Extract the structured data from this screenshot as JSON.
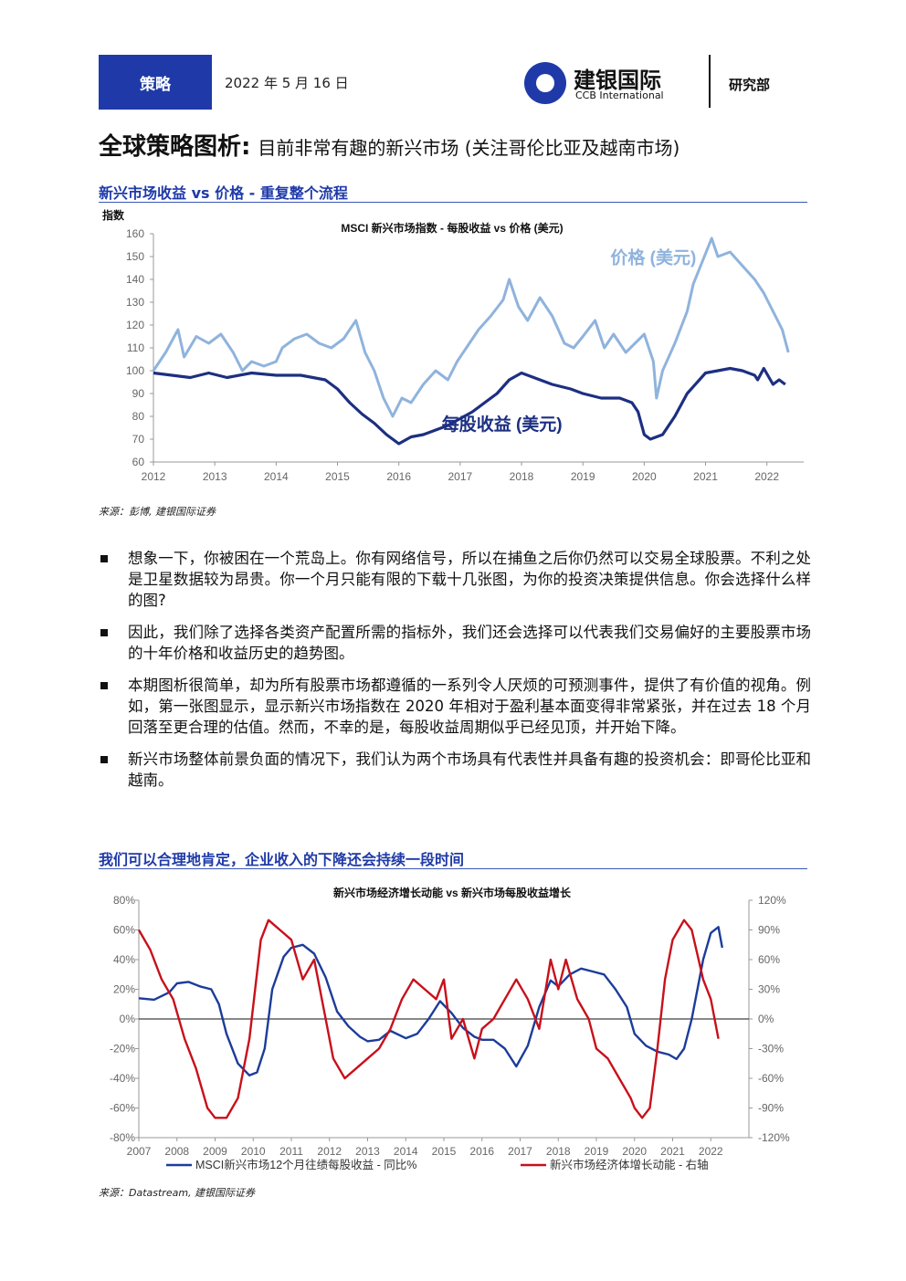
{
  "header": {
    "badge": "策略",
    "date": "2022 年 5 月 16 日",
    "logo_cn": "建银国际",
    "logo_en": "CCB International",
    "dept": "研究部"
  },
  "title": {
    "bold": "全球策略图析:",
    "rest": "目前非常有趣的新兴市场 (关注哥伦比亚及越南市场)"
  },
  "section1": {
    "heading": "新兴市场收益 vs 价格 - 重复整个流程"
  },
  "section2": {
    "heading": "我们可以合理地肯定，企业收入的下降还会持续一段时间"
  },
  "bullets": [
    "想象一下，你被困在一个荒岛上。你有网络信号，所以在捕鱼之后你仍然可以交易全球股票。不利之处是卫星数据较为昂贵。你一个月只能有限的下载十几张图，为你的投资决策提供信息。你会选择什么样的图?",
    "因此，我们除了选择各类资产配置所需的指标外，我们还会选择可以代表我们交易偏好的主要股票市场的十年价格和收益历史的趋势图。",
    "本期图析很简单，却为所有股票市场都遵循的一系列令人厌烦的可预测事件，提供了有价值的视角。例如，第一张图显示，显示新兴市场指数在 2020 年相对于盈利基本面变得非常紧张，并在过去 18 个月回落至更合理的估值。然而，不幸的是，每股收益周期似乎已经见顶，并开始下降。",
    "新兴市场整体前景负面的情况下，我们认为两个市场具有代表性并具备有趣的投资机会：即哥伦比亚和越南。"
  ],
  "sources": {
    "s1": "来源：彭博, 建银国际证券",
    "s2": "来源：Datastream, 建银国际证券"
  },
  "colors": {
    "brand": "#1f3aa8",
    "price": "#8fb3dd",
    "eps": "#1c2f82",
    "growth": "#c8101b",
    "epsgrowth": "#1c3c9a"
  },
  "chart_data": [
    {
      "type": "line",
      "title": "MSCI 新兴市场指数 - 每股收益 vs 价格 (美元)",
      "ylabel": "指数",
      "ylim": [
        60,
        160
      ],
      "yticks": [
        60,
        70,
        80,
        90,
        100,
        110,
        120,
        130,
        140,
        150,
        160
      ],
      "xlim": [
        2012,
        2022.6
      ],
      "xticks": [
        2012,
        2013,
        2014,
        2015,
        2016,
        2017,
        2018,
        2019,
        2020,
        2021,
        2022
      ],
      "series": [
        {
          "name": "价格 (美元)",
          "color": "#8fb3dd",
          "x": [
            2012.0,
            2012.2,
            2012.4,
            2012.5,
            2012.7,
            2012.9,
            2013.1,
            2013.3,
            2013.45,
            2013.6,
            2013.8,
            2014.0,
            2014.1,
            2014.3,
            2014.5,
            2014.7,
            2014.9,
            2015.1,
            2015.3,
            2015.45,
            2015.6,
            2015.75,
            2015.9,
            2016.05,
            2016.2,
            2016.4,
            2016.6,
            2016.8,
            2016.95,
            2017.1,
            2017.3,
            2017.5,
            2017.7,
            2017.8,
            2017.95,
            2018.1,
            2018.3,
            2018.5,
            2018.7,
            2018.85,
            2019.0,
            2019.2,
            2019.35,
            2019.5,
            2019.7,
            2019.85,
            2020.0,
            2020.15,
            2020.2,
            2020.3,
            2020.5,
            2020.7,
            2020.8,
            2020.95,
            2021.1,
            2021.2,
            2021.4,
            2021.6,
            2021.8,
            2021.95,
            2022.1,
            2022.25,
            2022.35
          ],
          "y": [
            100,
            108,
            118,
            106,
            115,
            112,
            116,
            108,
            100,
            104,
            102,
            104,
            110,
            114,
            116,
            112,
            110,
            114,
            122,
            108,
            100,
            88,
            80,
            88,
            86,
            94,
            100,
            96,
            104,
            110,
            118,
            124,
            131,
            140,
            128,
            122,
            132,
            124,
            112,
            110,
            115,
            122,
            110,
            116,
            108,
            112,
            116,
            104,
            88,
            100,
            112,
            126,
            138,
            148,
            158,
            150,
            152,
            146,
            140,
            134,
            126,
            118,
            108
          ]
        },
        {
          "name": "每股收益 (美元)",
          "color": "#1c2f82",
          "x": [
            2012.0,
            2012.3,
            2012.6,
            2012.9,
            2013.2,
            2013.6,
            2014.0,
            2014.4,
            2014.8,
            2015.0,
            2015.2,
            2015.4,
            2015.6,
            2015.8,
            2016.0,
            2016.2,
            2016.4,
            2016.6,
            2016.8,
            2017.0,
            2017.2,
            2017.4,
            2017.6,
            2017.8,
            2018.0,
            2018.2,
            2018.5,
            2018.8,
            2019.0,
            2019.3,
            2019.6,
            2019.8,
            2019.9,
            2020.0,
            2020.1,
            2020.3,
            2020.5,
            2020.7,
            2020.9,
            2021.0,
            2021.2,
            2021.4,
            2021.6,
            2021.8,
            2021.85,
            2021.95,
            2022.1,
            2022.2,
            2022.3
          ],
          "y": [
            99,
            98,
            97,
            99,
            97,
            99,
            98,
            98,
            96,
            92,
            86,
            81,
            77,
            72,
            68,
            71,
            72,
            74,
            76,
            79,
            82,
            86,
            90,
            96,
            99,
            97,
            94,
            92,
            90,
            88,
            88,
            86,
            82,
            72,
            70,
            72,
            80,
            90,
            96,
            99,
            100,
            101,
            100,
            98,
            96,
            101,
            94,
            96,
            94
          ]
        }
      ],
      "annotations": [
        {
          "text": "价格 (美元)",
          "x": 2019.45,
          "y": 147
        },
        {
          "text": "每股收益 (美元)",
          "x": 2016.7,
          "y": 74
        }
      ]
    },
    {
      "type": "line",
      "title": "新兴市场经济增长动能 vs 新兴市场每股收益增长",
      "ylim": [
        -80,
        80
      ],
      "yticks": [
        -80,
        -60,
        -40,
        -20,
        0,
        20,
        40,
        60,
        80
      ],
      "y2lim": [
        -120,
        120
      ],
      "y2ticks": [
        -120,
        -90,
        -60,
        -30,
        0,
        30,
        60,
        90,
        120
      ],
      "xlim": [
        2007,
        2023
      ],
      "xticks": [
        2007,
        2008,
        2009,
        2010,
        2011,
        2012,
        2013,
        2014,
        2015,
        2016,
        2017,
        2018,
        2019,
        2020,
        2021,
        2022
      ],
      "series": [
        {
          "name": "MSCI新兴市场12个月往绩每股收益 - 同比%",
          "axis": "left",
          "color": "#1c3c9a",
          "x": [
            2007.0,
            2007.4,
            2007.8,
            2008.0,
            2008.3,
            2008.6,
            2008.9,
            2009.1,
            2009.3,
            2009.6,
            2009.9,
            2010.1,
            2010.3,
            2010.5,
            2010.8,
            2011.0,
            2011.3,
            2011.6,
            2011.9,
            2012.2,
            2012.5,
            2012.8,
            2013.0,
            2013.3,
            2013.6,
            2014.0,
            2014.3,
            2014.6,
            2014.9,
            2015.2,
            2015.5,
            2015.8,
            2016.0,
            2016.3,
            2016.6,
            2016.9,
            2017.2,
            2017.5,
            2017.8,
            2018.0,
            2018.3,
            2018.6,
            2018.9,
            2019.2,
            2019.5,
            2019.8,
            2020.0,
            2020.3,
            2020.6,
            2020.9,
            2021.1,
            2021.3,
            2021.5,
            2021.8,
            2022.0,
            2022.2,
            2022.3
          ],
          "y": [
            14,
            13,
            18,
            24,
            25,
            22,
            20,
            10,
            -10,
            -30,
            -38,
            -36,
            -20,
            20,
            42,
            48,
            50,
            44,
            28,
            5,
            -5,
            -12,
            -15,
            -14,
            -8,
            -13,
            -10,
            0,
            12,
            4,
            -6,
            -12,
            -14,
            -14,
            -20,
            -32,
            -18,
            8,
            26,
            22,
            30,
            34,
            32,
            30,
            20,
            8,
            -10,
            -18,
            -22,
            -24,
            -27,
            -20,
            0,
            40,
            58,
            62,
            48
          ]
        },
        {
          "name": "新兴市场经济体增长动能 - 右轴",
          "axis": "right",
          "color": "#c8101b",
          "x": [
            2007.0,
            2007.3,
            2007.6,
            2007.9,
            2008.2,
            2008.5,
            2008.8,
            2009.0,
            2009.3,
            2009.6,
            2009.9,
            2010.2,
            2010.4,
            2010.7,
            2011.0,
            2011.3,
            2011.6,
            2011.9,
            2012.1,
            2012.4,
            2012.7,
            2013.0,
            2013.3,
            2013.6,
            2013.9,
            2014.2,
            2014.5,
            2014.8,
            2015.0,
            2015.2,
            2015.5,
            2015.8,
            2016.0,
            2016.3,
            2016.6,
            2016.9,
            2017.2,
            2017.5,
            2017.8,
            2018.0,
            2018.2,
            2018.5,
            2018.8,
            2019.0,
            2019.3,
            2019.6,
            2019.9,
            2020.0,
            2020.2,
            2020.4,
            2020.6,
            2020.8,
            2021.0,
            2021.3,
            2021.5,
            2021.8,
            2022.0,
            2022.2
          ],
          "y": [
            90,
            70,
            40,
            20,
            -20,
            -50,
            -90,
            -100,
            -100,
            -80,
            -20,
            80,
            100,
            90,
            80,
            40,
            60,
            0,
            -40,
            -60,
            -50,
            -40,
            -30,
            -10,
            20,
            40,
            30,
            20,
            40,
            -20,
            0,
            -40,
            -10,
            0,
            20,
            40,
            20,
            -10,
            60,
            30,
            60,
            20,
            0,
            -30,
            -40,
            -60,
            -80,
            -90,
            -100,
            -90,
            -30,
            40,
            80,
            100,
            90,
            40,
            20,
            -20
          ]
        }
      ]
    }
  ]
}
